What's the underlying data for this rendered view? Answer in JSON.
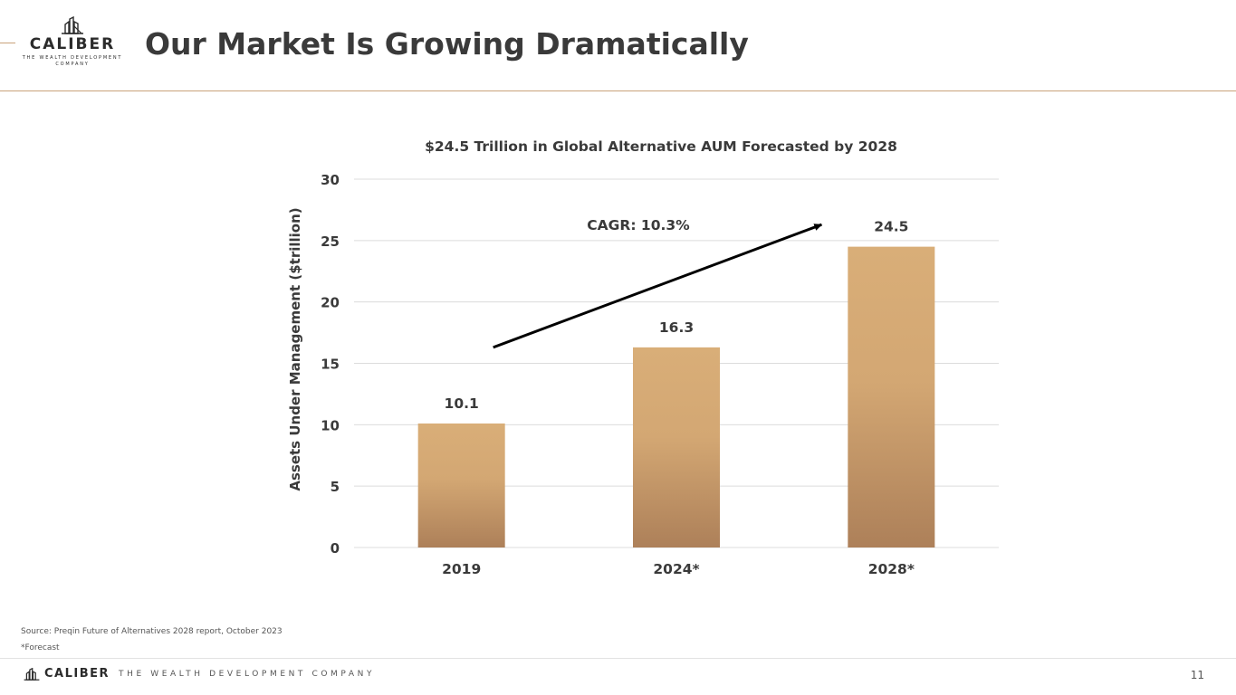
{
  "colors": {
    "accent": "#c9a27a",
    "bar_top": "#d9ae78",
    "bar_bottom": "#ad8059",
    "grid": "#dcdcdc",
    "text_dark": "#3a3a3a"
  },
  "logo": {
    "icon": "building-logo-icon",
    "name": "CALIBER",
    "tagline_1": "THE WEALTH DEVELOPMENT",
    "tagline_2": "COMPANY"
  },
  "header": {
    "title": "Our Market Is Growing Dramatically"
  },
  "chart_data": {
    "type": "bar",
    "title": "$24.5 Trillion in Global Alternative AUM Forecasted by 2028",
    "xlabel": "",
    "ylabel": "Assets Under Management ($trillion)",
    "categories": [
      "2019",
      "2024*",
      "2028*"
    ],
    "values": [
      10.1,
      16.3,
      24.5
    ],
    "data_labels": [
      "10.1",
      "16.3",
      "24.5"
    ],
    "ylim": [
      0,
      30
    ],
    "yticks": [
      0,
      5,
      10,
      15,
      20,
      25,
      30
    ],
    "grid": true,
    "legend": false,
    "annotation": {
      "text": "CAGR: 10.3%",
      "arrow_from": {
        "x": "2019",
        "y": 16.3
      },
      "arrow_to": {
        "x": "2028*",
        "y": 26.3
      }
    }
  },
  "footnotes": {
    "source": "Source: Preqin Future of Alternatives 2028 report, October 2023",
    "forecast": "*Forecast"
  },
  "footer": {
    "icon": "building-logo-icon",
    "brand": "CALIBER",
    "tagline": "THE WEALTH DEVELOPMENT COMPANY",
    "page_number": "11"
  }
}
